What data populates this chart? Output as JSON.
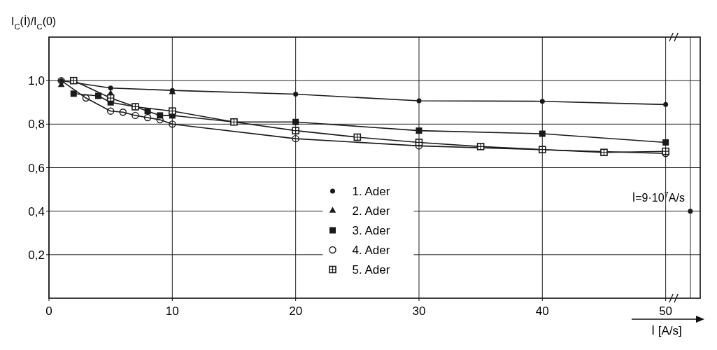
{
  "chart_data": {
    "type": "line",
    "ylabel": "I$_{C}$(İ)/I$_{C}$(0)",
    "xlabel": "İ [A/s]",
    "xlim": [
      0,
      52.8
    ],
    "ylim": [
      0,
      1.2
    ],
    "xticks": [
      0,
      10,
      20,
      30,
      40,
      50
    ],
    "yticks": [
      {
        "value": 0.2,
        "label": "0,2"
      },
      {
        "value": 0.4,
        "label": "0,4"
      },
      {
        "value": 0.6,
        "label": "0,6"
      },
      {
        "value": 0.8,
        "label": "0,8"
      },
      {
        "value": 1.0,
        "label": "1,0"
      }
    ],
    "grid": true,
    "legend": "bottom",
    "series": [
      {
        "name": "1. Ader",
        "color": "#1a1a1a",
        "marker": "circle",
        "x": [
          1,
          5,
          10,
          20,
          30,
          40,
          50
        ],
        "values": [
          1.0,
          0.966,
          0.955,
          0.938,
          0.907,
          0.905,
          0.89
        ]
      },
      {
        "name": "2. Ader",
        "type": "scatter",
        "color": "#1a1a1a",
        "marker": "triangle",
        "x": [
          1,
          5,
          10
        ],
        "values": [
          0.98,
          0.94,
          0.947
        ]
      },
      {
        "name": "3. Ader",
        "color": "#1a1a1a",
        "marker": "square",
        "x": [
          2,
          4,
          5,
          7,
          8,
          9,
          10,
          15,
          20,
          30,
          40,
          50
        ],
        "values": [
          0.94,
          0.93,
          0.9,
          0.88,
          0.86,
          0.84,
          0.84,
          0.81,
          0.81,
          0.77,
          0.756,
          0.716
        ]
      },
      {
        "name": "4. Ader",
        "color": "#1a1a1a",
        "marker": "circle",
        "x": [
          1,
          3,
          5,
          6,
          7,
          8,
          9,
          10,
          20,
          30,
          50
        ],
        "values": [
          1.0,
          0.92,
          0.86,
          0.855,
          0.84,
          0.83,
          0.82,
          0.8,
          0.733,
          0.7,
          0.665
        ]
      },
      {
        "name": "5. Ader",
        "color": "#1a1a1a",
        "marker": "square",
        "x": [
          2,
          5,
          7,
          10,
          15,
          20,
          25,
          30,
          35,
          40,
          45,
          50
        ],
        "values": [
          1.0,
          0.92,
          0.88,
          0.86,
          0.81,
          0.77,
          0.74,
          0.716,
          0.697,
          0.683,
          0.67,
          0.675
        ]
      },
      {
        "type": "scatter",
        "color": "#1a1a1a",
        "marker": "circle",
        "x": [
          52
        ],
        "values": [
          0.4
        ]
      }
    ],
    "ref_lines": [
      {
        "axis": "x",
        "value": 52
      }
    ],
    "annotations": [
      {
        "text": "İ=9·10$^{7}$A/s",
        "x": 52,
        "y": 0.4
      }
    ]
  }
}
